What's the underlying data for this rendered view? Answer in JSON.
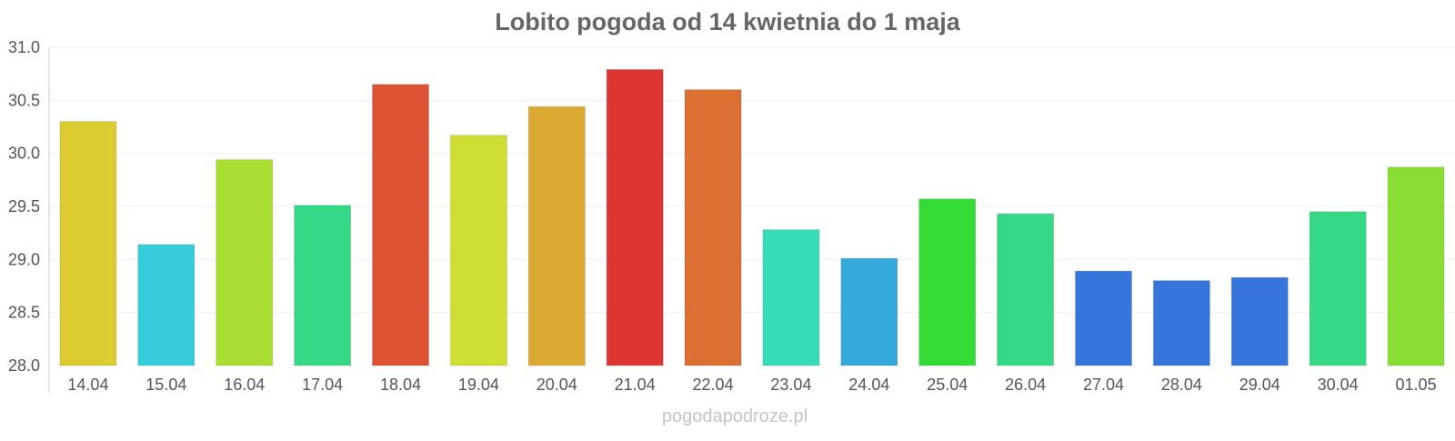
{
  "chart_data": {
    "type": "bar",
    "title": "Lobito pogoda od 14 kwietnia do 1 maja",
    "xlabel": "",
    "ylabel": "",
    "ylim": [
      28.0,
      31.0
    ],
    "y_ticks": [
      "28.0",
      "28.5",
      "29.0",
      "29.5",
      "30.0",
      "30.5",
      "31.0"
    ],
    "grid": true,
    "legend": "none",
    "categories": [
      "14.04",
      "15.04",
      "16.04",
      "17.04",
      "18.04",
      "19.04",
      "20.04",
      "21.04",
      "22.04",
      "23.04",
      "24.04",
      "25.04",
      "26.04",
      "27.04",
      "28.04",
      "29.04",
      "30.04",
      "01.05"
    ],
    "values": [
      30.3,
      29.14,
      29.94,
      29.51,
      30.65,
      30.17,
      30.44,
      30.79,
      30.6,
      29.28,
      29.01,
      29.57,
      29.43,
      28.89,
      28.8,
      28.83,
      29.45,
      29.87
    ],
    "colors": [
      "#dccc32",
      "#35cddc",
      "#aade32",
      "#35d985",
      "#dc5232",
      "#cede32",
      "#dca932",
      "#dc3532",
      "#dc6f32",
      "#35ddb9",
      "#35a9dc",
      "#32dc35",
      "#35d985",
      "#3575dc",
      "#3575dc",
      "#3575dc",
      "#35d985",
      "#8add32"
    ]
  },
  "watermark": "pogodapodroze.pl"
}
